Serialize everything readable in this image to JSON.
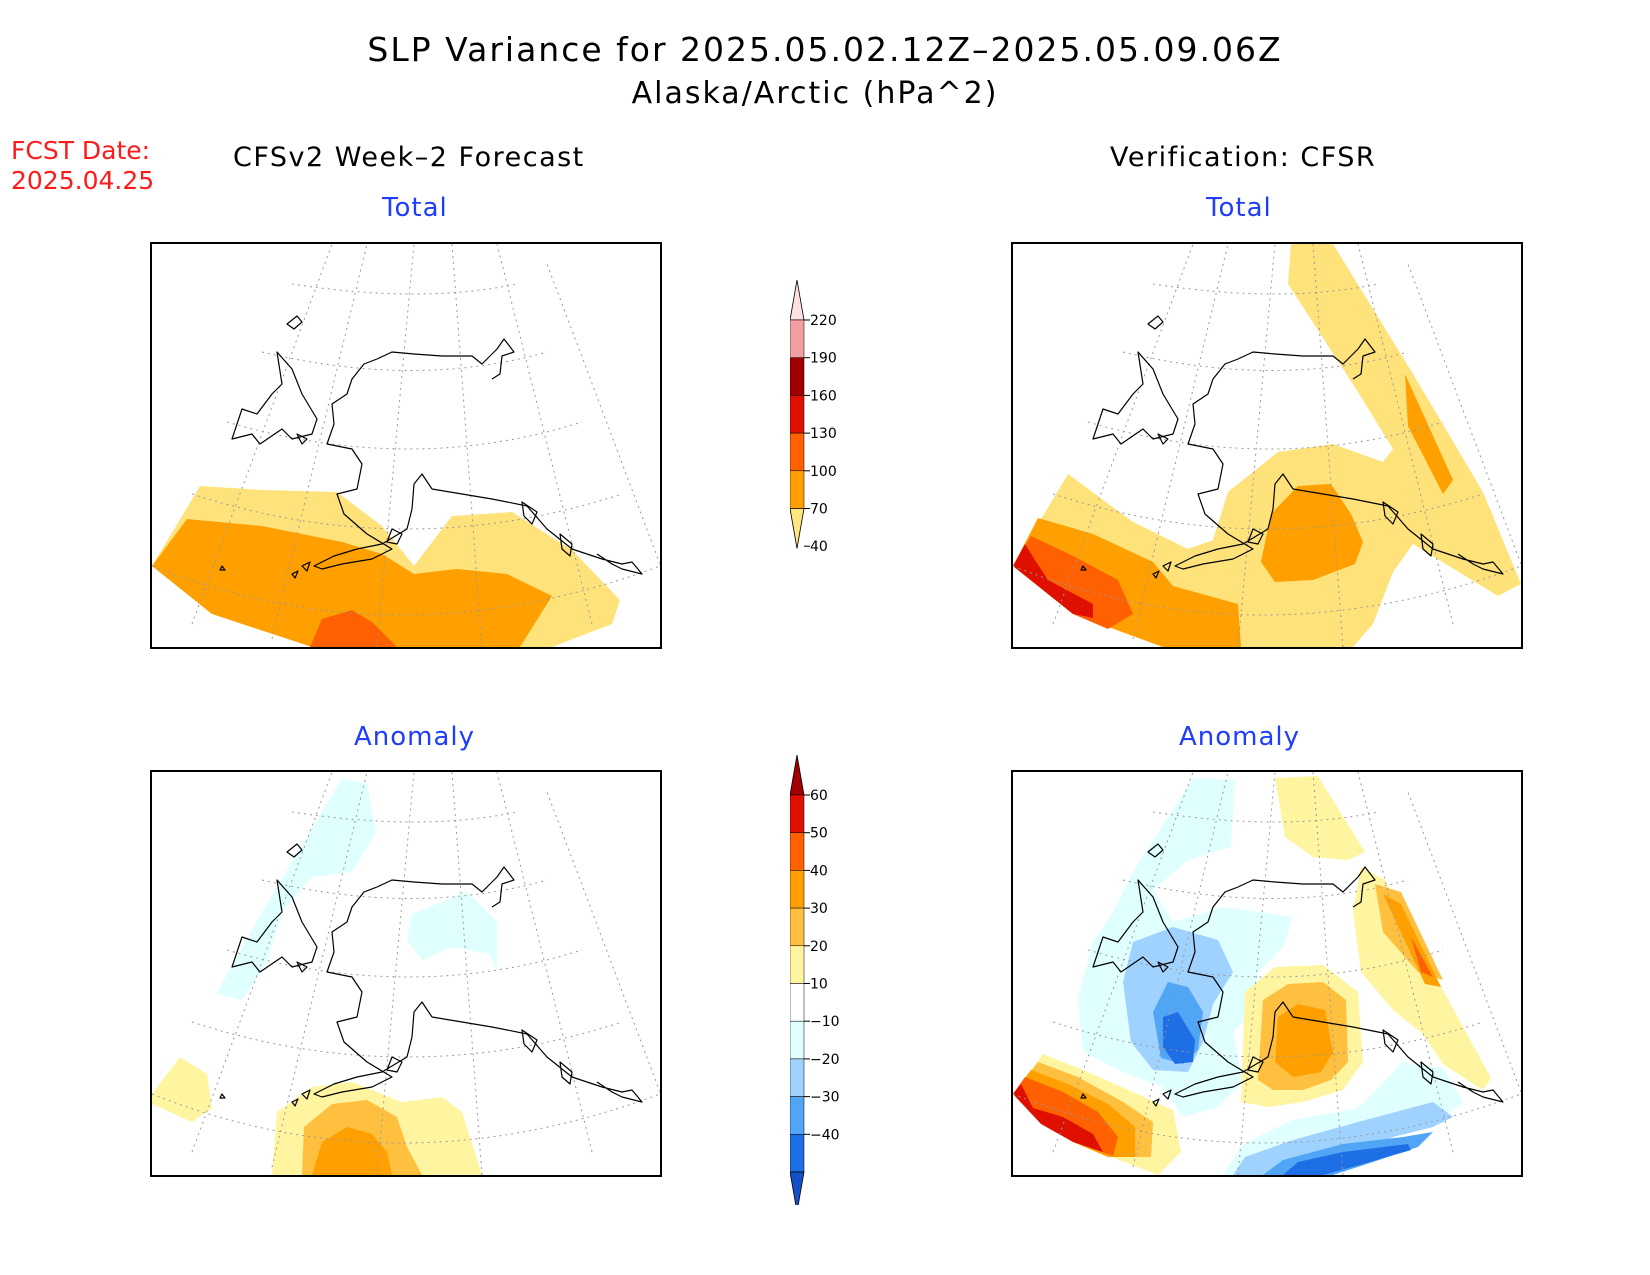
{
  "title": "SLP Variance for 2025.05.02.12Z–2025.05.09.06Z",
  "subtitle": "Alaska/Arctic (hPa^2)",
  "fcst_date_label": "FCST Date:",
  "fcst_date_value": "2025.04.25",
  "columns": {
    "forecast": "CFSv2 Week–2 Forecast",
    "verification": "Verification: CFSR"
  },
  "panels": {
    "fc_total": "Total",
    "vr_total": "Total",
    "fc_anom": "Anomaly",
    "vr_anom": "Anomaly"
  },
  "colorbars": {
    "total": {
      "levels": [
        "40",
        "70",
        "100",
        "130",
        "160",
        "190",
        "220"
      ],
      "colors": [
        "#ffe680",
        "#ffa000",
        "#ff6000",
        "#e01000",
        "#a00000",
        "#f0a0a0",
        "#ffe0e0"
      ]
    },
    "anomaly": {
      "levels": [
        "60",
        "50",
        "40",
        "30",
        "20",
        "10",
        "−10",
        "−20",
        "−30",
        "−40"
      ],
      "colors": [
        "#a50000",
        "#e01000",
        "#ff6000",
        "#ffa000",
        "#ffc040",
        "#fff5a0",
        "#ffffff",
        "#e0ffff",
        "#a0d2ff",
        "#50a5f5",
        "#1e6ee6",
        "#1450c8"
      ]
    }
  },
  "map_colors": {
    "c40": "#ffe27a",
    "c70": "#ffa000",
    "c100": "#ff6000",
    "c130": "#e01000",
    "a10": "#fff5a0",
    "a20": "#ffc040",
    "a30": "#ffa000",
    "a40": "#ff6000",
    "a50": "#e01000",
    "am10": "#e0ffff",
    "am20": "#a0d2ff",
    "am30": "#50a5f5",
    "am40": "#1e6ee6"
  }
}
